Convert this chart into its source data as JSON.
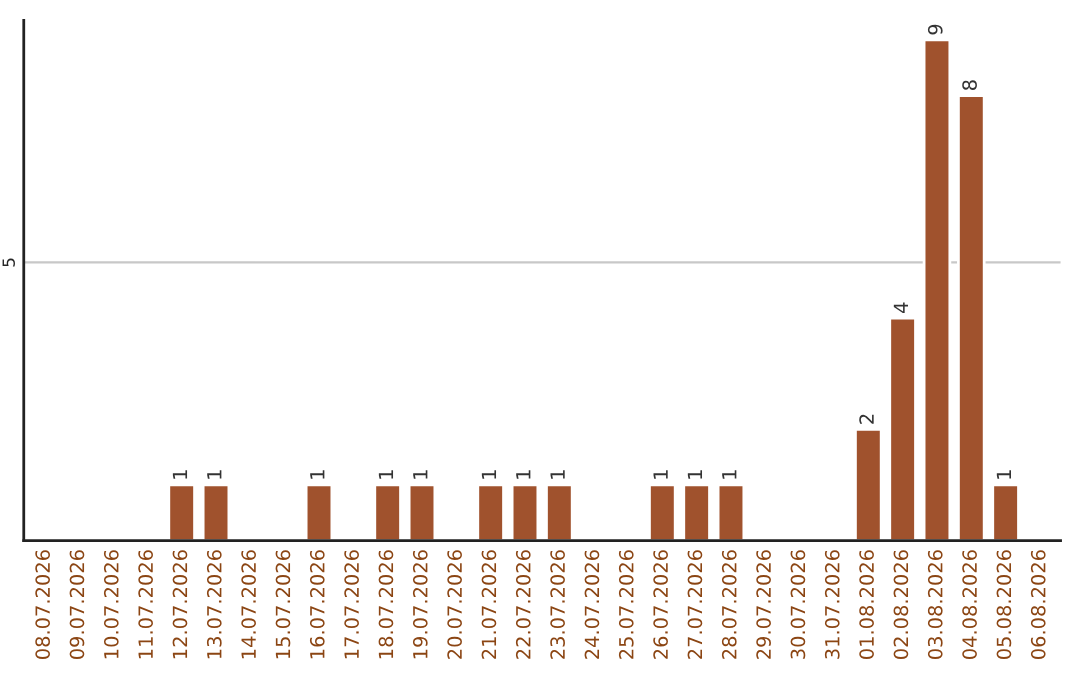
{
  "chart_data": {
    "type": "bar",
    "categories": [
      "08.07.2026",
      "09.07.2026",
      "10.07.2026",
      "11.07.2026",
      "12.07.2026",
      "13.07.2026",
      "14.07.2026",
      "15.07.2026",
      "16.07.2026",
      "17.07.2026",
      "18.07.2026",
      "19.07.2026",
      "20.07.2026",
      "21.07.2026",
      "22.07.2026",
      "23.07.2026",
      "24.07.2026",
      "25.07.2026",
      "26.07.2026",
      "27.07.2026",
      "28.07.2026",
      "29.07.2026",
      "30.07.2026",
      "31.07.2026",
      "01.08.2026",
      "02.08.2026",
      "03.08.2026",
      "04.08.2026",
      "05.08.2026",
      "06.08.2026"
    ],
    "values": [
      0,
      0,
      0,
      0,
      1,
      1,
      0,
      0,
      1,
      0,
      1,
      1,
      0,
      1,
      1,
      1,
      0,
      0,
      1,
      1,
      1,
      0,
      0,
      0,
      2,
      4,
      9,
      8,
      1,
      0
    ],
    "value_labels": [
      null,
      null,
      null,
      null,
      "1",
      "1",
      null,
      null,
      "1",
      null,
      "1",
      "1",
      null,
      "1",
      "1",
      "1",
      null,
      null,
      "1",
      "1",
      "1",
      null,
      null,
      null,
      "2",
      "4",
      "9",
      "8",
      "1",
      null
    ],
    "color": "#a0522d",
    "ylim": [
      0,
      9.35
    ],
    "yticks": [
      5
    ],
    "grid": "y",
    "legend": false
  }
}
